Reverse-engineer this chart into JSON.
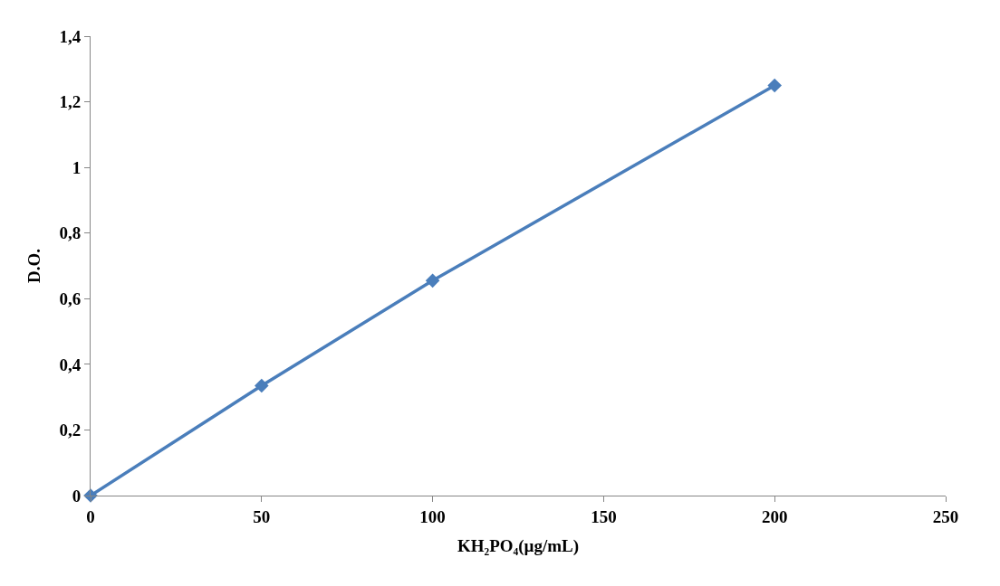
{
  "chart_data": {
    "type": "line",
    "xlabel": "KH₂PO₄(µg/mL)",
    "ylabel": "D.O.",
    "x": [
      0,
      50,
      100,
      200
    ],
    "series": [
      {
        "color": "#4a7ebb",
        "values": [
          0,
          0.335,
          0.655,
          1.25
        ]
      }
    ],
    "xlim": [
      0,
      250
    ],
    "xticks": [
      0,
      50,
      100,
      150,
      200,
      250
    ],
    "ylim": [
      0,
      1.4
    ],
    "yticks": [
      0,
      {
        "value": 0.2,
        "label": "0,2"
      },
      {
        "value": 0.4,
        "label": "0,4"
      },
      {
        "value": 0.6,
        "label": "0,6"
      },
      {
        "value": 0.8,
        "label": "0,8"
      },
      1,
      {
        "value": 1.2,
        "label": "1,2"
      },
      {
        "value": 1.4,
        "label": "1,4"
      }
    ],
    "marker": "diamond",
    "line_style": "solid",
    "legend": false
  }
}
